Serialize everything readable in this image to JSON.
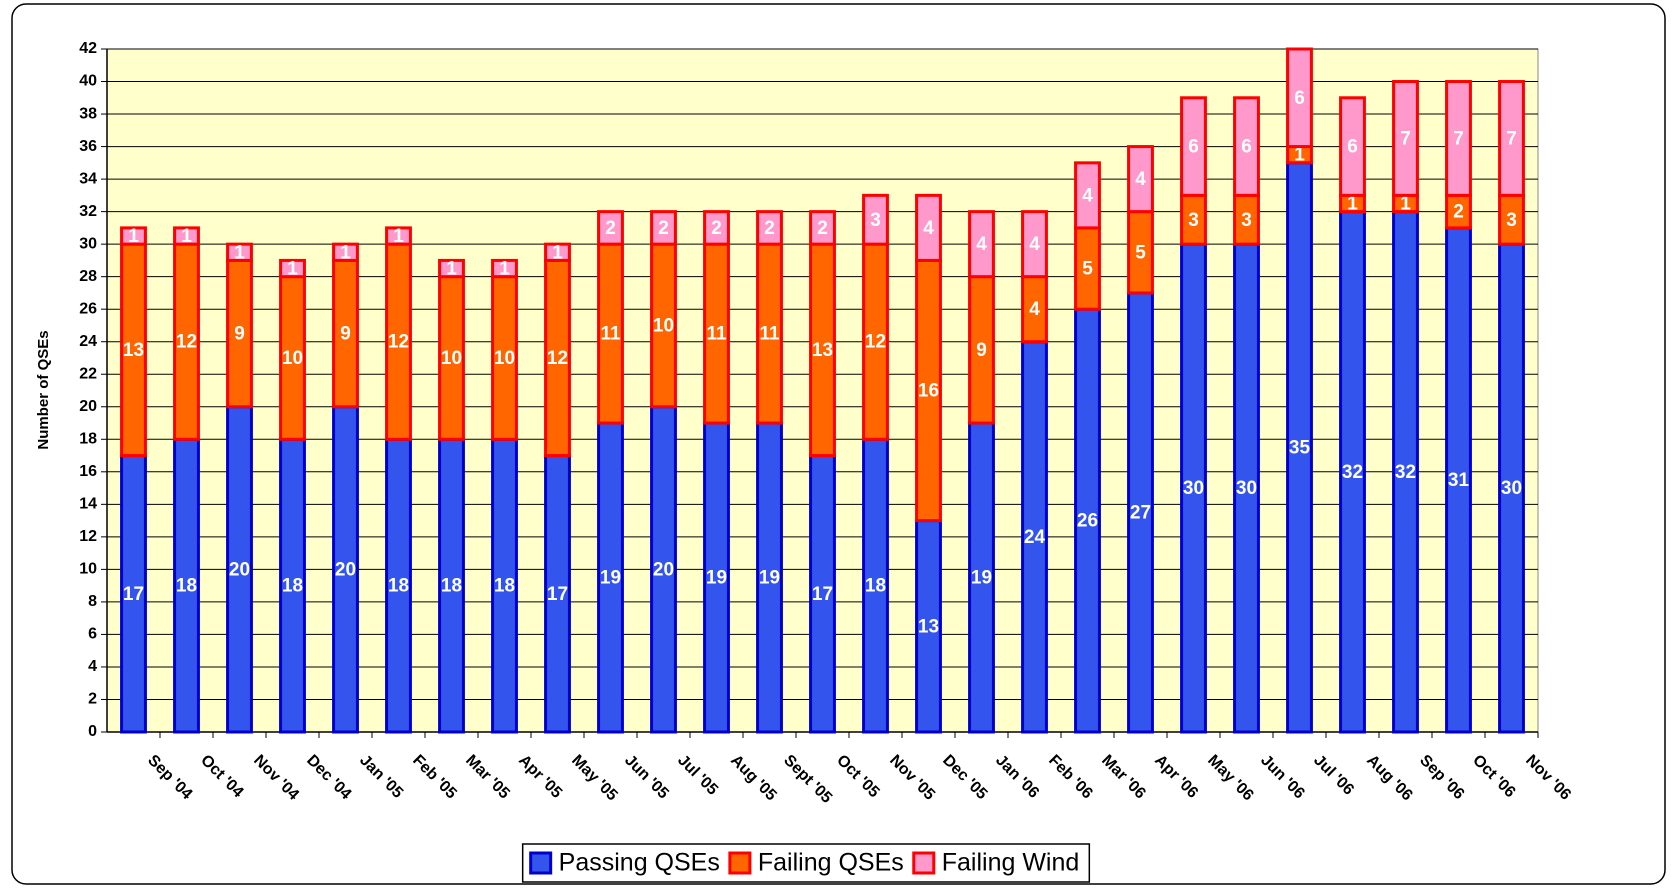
{
  "chart_data": {
    "type": "stacked_bar",
    "ylabel": "Number of QSEs",
    "categories": [
      "Sep '04",
      "Oct '04",
      "Nov '04",
      "Dec '04",
      "Jan '05",
      "Feb '05",
      "Mar '05",
      "Apr '05",
      "May '05",
      "Jun '05",
      "Jul '05",
      "Aug '05",
      "Sept '05",
      "Oct '05",
      "Nov '05",
      "Dec '05",
      "Jan '06",
      "Feb '06",
      "Mar '06",
      "Apr '06",
      "May '06",
      "Jun '06",
      "Jul '06",
      "Aug '06",
      "Sep '06",
      "Oct '06",
      "Nov '06"
    ],
    "series": [
      {
        "name": "Passing QSEs",
        "color": "#3355ee",
        "stroke": "#0000cc",
        "values": [
          17,
          18,
          20,
          18,
          20,
          18,
          18,
          18,
          17,
          19,
          20,
          19,
          19,
          17,
          18,
          13,
          19,
          24,
          26,
          27,
          30,
          30,
          35,
          32,
          32,
          31,
          30
        ]
      },
      {
        "name": "Failing QSEs",
        "color": "#ff6600",
        "stroke": "#ff0000",
        "values": [
          13,
          12,
          9,
          10,
          9,
          12,
          10,
          10,
          12,
          11,
          10,
          11,
          11,
          13,
          12,
          16,
          9,
          4,
          5,
          5,
          3,
          3,
          1,
          1,
          1,
          2,
          3
        ]
      },
      {
        "name": "Failing Wind",
        "color": "#ff99cc",
        "stroke": "#ff0000",
        "values": [
          1,
          1,
          1,
          1,
          1,
          1,
          1,
          1,
          1,
          2,
          2,
          2,
          2,
          2,
          3,
          4,
          4,
          4,
          4,
          4,
          6,
          6,
          6,
          6,
          7,
          7,
          7
        ]
      }
    ],
    "ylim": [
      0,
      42
    ],
    "yticks": [
      0,
      2,
      4,
      6,
      8,
      10,
      12,
      14,
      16,
      18,
      20,
      22,
      24,
      26,
      28,
      30,
      32,
      34,
      36,
      38,
      40,
      42
    ],
    "grid": true,
    "legend": "bottom"
  }
}
